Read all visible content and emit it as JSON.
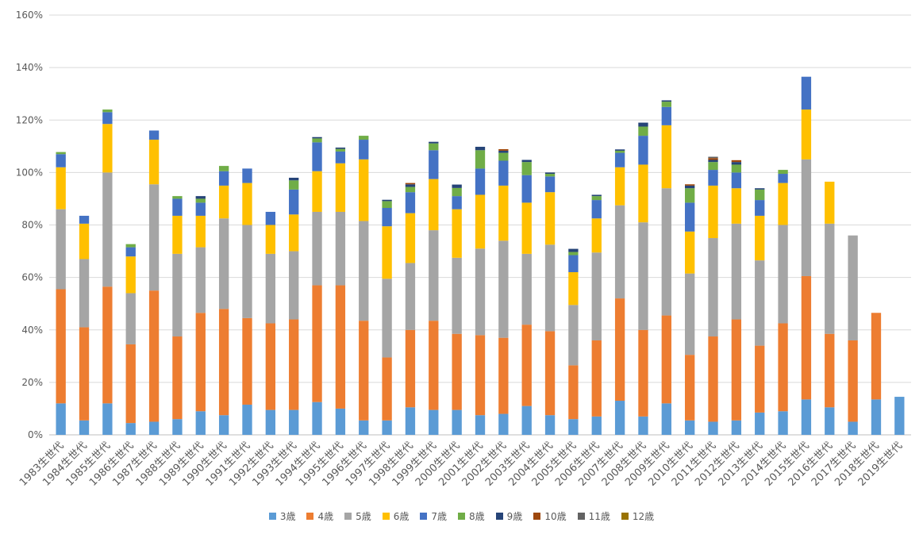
{
  "chart_data": {
    "type": "bar",
    "stacked": true,
    "title": "",
    "xlabel": "",
    "ylabel": "",
    "ylim": [
      0,
      160
    ],
    "y_tick_labels": [
      "0%",
      "20%",
      "40%",
      "60%",
      "80%",
      "100%",
      "120%",
      "140%",
      "160%"
    ],
    "grid": true,
    "legend_position": "bottom",
    "categories": [
      "1983生世代",
      "1984生世代",
      "1985生世代",
      "1986生世代",
      "1987生世代",
      "1988生世代",
      "1989生世代",
      "1990生世代",
      "1991生世代",
      "1992生世代",
      "1993生世代",
      "1994生世代",
      "1995生世代",
      "1996生世代",
      "1997生世代",
      "1998生世代",
      "1999生世代",
      "2000生世代",
      "2001生世代",
      "2002生世代",
      "2003生世代",
      "2004生世代",
      "2005生世代",
      "2006生世代",
      "2007生世代",
      "2008生世代",
      "2009生世代",
      "2010生世代",
      "2011生世代",
      "2012生世代",
      "2013生世代",
      "2014生世代",
      "2015生世代",
      "2016生世代",
      "2017生世代",
      "2018生世代",
      "2019生世代"
    ],
    "series": [
      {
        "name": "3歳",
        "color": "#5B9BD5",
        "values": [
          12,
          5.5,
          12,
          4.5,
          5,
          6,
          9,
          7.5,
          11.5,
          9.5,
          9.5,
          12.5,
          10,
          5.5,
          5.5,
          10.5,
          9.5,
          9.5,
          7.5,
          8,
          11,
          7.5,
          6,
          7,
          13,
          7,
          12,
          5.5,
          5,
          5.5,
          8.5,
          9,
          13.5,
          10.5,
          5,
          13.5,
          14.5
        ]
      },
      {
        "name": "4歳",
        "color": "#ED7D31",
        "values": [
          43.5,
          35.5,
          44.5,
          30,
          50,
          31.5,
          37.5,
          40.5,
          33,
          33,
          34.5,
          44.5,
          47,
          38,
          24,
          29.5,
          34,
          29,
          30.5,
          29,
          31,
          32,
          20.5,
          29,
          39,
          33,
          33.5,
          25,
          32.5,
          38.5,
          25.5,
          33.5,
          47,
          28,
          31,
          33,
          0
        ]
      },
      {
        "name": "5歳",
        "color": "#A5A5A5",
        "values": [
          30.5,
          26,
          43.5,
          19.5,
          40.5,
          31.5,
          25,
          34.5,
          35.5,
          26.5,
          26,
          28,
          28,
          38,
          30,
          25.5,
          34.5,
          29,
          33,
          37,
          27,
          33,
          23,
          33.5,
          35.5,
          41,
          48.5,
          31,
          37.5,
          36.5,
          32.5,
          37.5,
          44.5,
          42,
          40,
          0,
          0
        ]
      },
      {
        "name": "6歳",
        "color": "#FFC000",
        "values": [
          16,
          13.5,
          18.5,
          14,
          17,
          14.5,
          12,
          12.5,
          16,
          11,
          14,
          15.5,
          18.5,
          23.5,
          20,
          19,
          19.5,
          18.5,
          20.5,
          21,
          19.5,
          20,
          12.5,
          13,
          14.5,
          22,
          24,
          16,
          20,
          13.5,
          17,
          16,
          19,
          16,
          0,
          0,
          0
        ]
      },
      {
        "name": "7歳",
        "color": "#4472C4",
        "values": [
          5,
          3,
          4.5,
          3.5,
          3.5,
          6.5,
          5,
          5.5,
          5.5,
          5,
          9.5,
          11,
          4.5,
          7.5,
          7,
          8,
          11,
          5,
          10,
          9.5,
          10.5,
          6,
          6.5,
          7,
          5.5,
          11,
          7,
          11,
          6,
          6,
          6,
          3.5,
          12.5,
          0,
          0,
          0,
          0
        ]
      },
      {
        "name": "8歳",
        "color": "#70AD47",
        "values": [
          0.8,
          0,
          1,
          1.2,
          0,
          1,
          1.5,
          2,
          0,
          0,
          3.5,
          1.5,
          1,
          1.5,
          2.6,
          2,
          2.6,
          3.1,
          7,
          3,
          5,
          1,
          1.2,
          1.5,
          0.8,
          3.5,
          2,
          5.5,
          3,
          3,
          4,
          1.5,
          0,
          0,
          0,
          0,
          0
        ]
      },
      {
        "name": "9歳",
        "color": "#264478",
        "values": [
          0,
          0,
          0,
          0,
          0,
          0,
          1,
          0,
          0,
          0,
          1,
          0.5,
          0.5,
          0,
          0.5,
          1,
          0.6,
          1.3,
          1.3,
          0.8,
          0.8,
          0.5,
          1.2,
          0.5,
          0.5,
          1.5,
          0.5,
          1,
          0.8,
          1,
          0.5,
          0,
          0,
          0,
          0,
          0,
          0
        ]
      },
      {
        "name": "10歳",
        "color": "#9E480E",
        "values": [
          0,
          0,
          0,
          0,
          0,
          0,
          0,
          0,
          0,
          0,
          0,
          0,
          0,
          0,
          0,
          0.5,
          0,
          0,
          0,
          0.6,
          0,
          0,
          0,
          0,
          0,
          0,
          0,
          0.5,
          0.7,
          0.7,
          0,
          0,
          0,
          0,
          0,
          0,
          0
        ]
      },
      {
        "name": "11歳",
        "color": "#636363",
        "values": [
          0,
          0,
          0,
          0,
          0,
          0,
          0,
          0,
          0,
          0,
          0,
          0,
          0,
          0,
          0,
          0,
          0,
          0,
          0,
          0,
          0,
          0,
          0,
          0,
          0,
          0,
          0,
          0,
          0.5,
          0,
          0,
          0,
          0,
          0,
          0,
          0,
          0
        ]
      },
      {
        "name": "12歳",
        "color": "#997300",
        "values": [
          0,
          0,
          0,
          0,
          0,
          0,
          0,
          0,
          0,
          0,
          0,
          0,
          0,
          0,
          0,
          0,
          0,
          0,
          0,
          0,
          0,
          0,
          0,
          0,
          0,
          0,
          0,
          0,
          0,
          0,
          0,
          0,
          0,
          0,
          0,
          0,
          0
        ]
      }
    ]
  }
}
